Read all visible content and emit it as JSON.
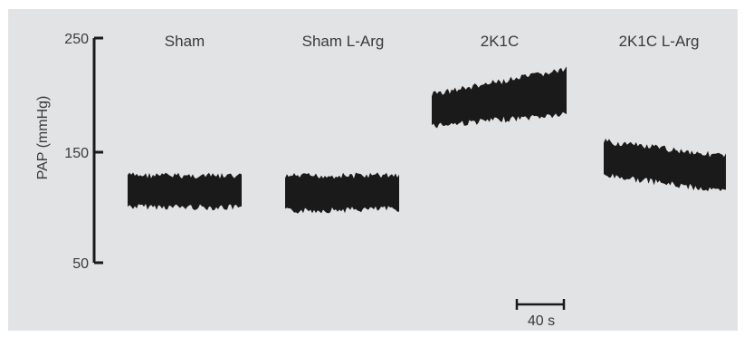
{
  "chart_data": {
    "type": "area",
    "ylabel": "PAP (mmHg)",
    "y_ticks": [
      "250",
      "150",
      "50"
    ],
    "y_tick_values": [
      250,
      150,
      50
    ],
    "ylim": [
      50,
      250
    ],
    "scale_bar": {
      "label": "40 s",
      "duration_s": 40
    },
    "colors": {
      "trace": "#1a1a1a",
      "axis": "#1a1a1a",
      "background": "#e2e3e5"
    },
    "groups": [
      {
        "label": "Sham",
        "pap_min_start": 100,
        "pap_max_start": 128,
        "pap_min_end": 99,
        "pap_max_end": 127
      },
      {
        "label": "Sham L-Arg",
        "pap_min_start": 96,
        "pap_max_start": 127,
        "pap_min_end": 98,
        "pap_max_end": 128
      },
      {
        "label": "2K1C",
        "pap_min_start": 172,
        "pap_max_start": 200,
        "pap_min_end": 182,
        "pap_max_end": 222
      },
      {
        "label": "2K1C L-Arg",
        "pap_min_start": 128,
        "pap_max_start": 158,
        "pap_min_end": 113,
        "pap_max_end": 145
      }
    ]
  }
}
